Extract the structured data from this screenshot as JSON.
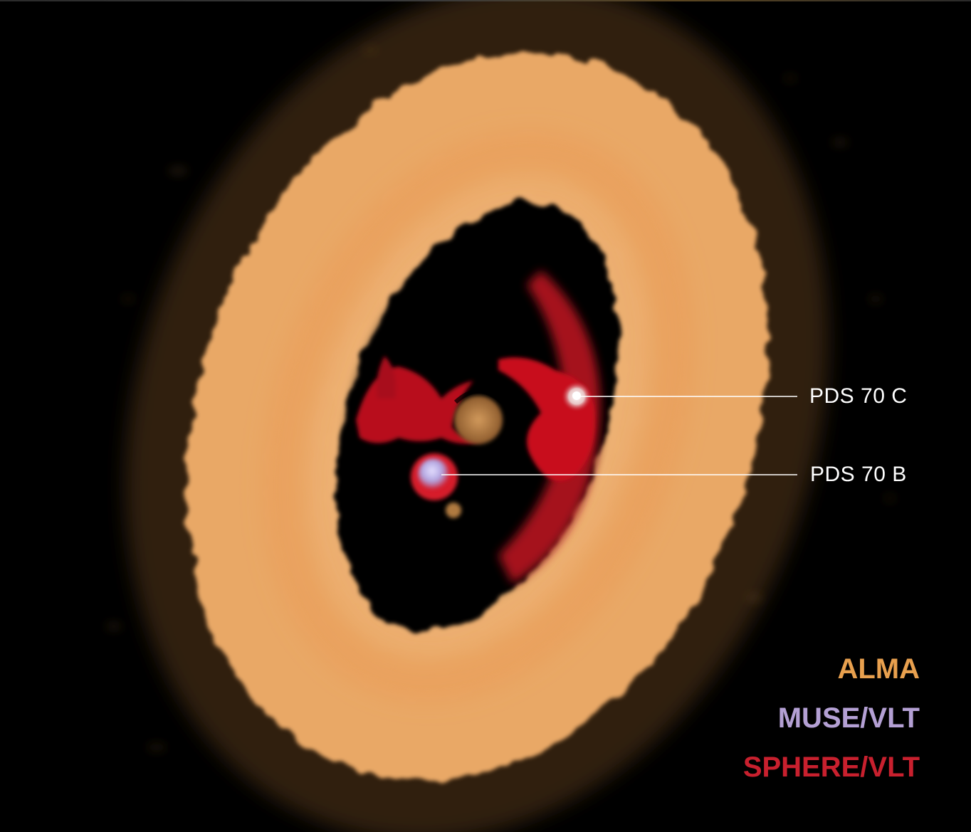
{
  "planets": {
    "c": {
      "label": "PDS 70 C"
    },
    "b": {
      "label": "PDS 70 B"
    }
  },
  "legend": {
    "alma": {
      "label": "ALMA",
      "color": "#e8a04e"
    },
    "muse": {
      "label": "MUSE/VLT",
      "color": "#b4a0d4"
    },
    "sphere": {
      "label": "SPHERE/VLT",
      "color": "#c8202e"
    }
  },
  "colors": {
    "background": "#000000",
    "ring": "#f2b878",
    "dust_red": "#c0101e",
    "planet_glow": "#c8c8f0",
    "pointer_line": "#ffffff"
  }
}
